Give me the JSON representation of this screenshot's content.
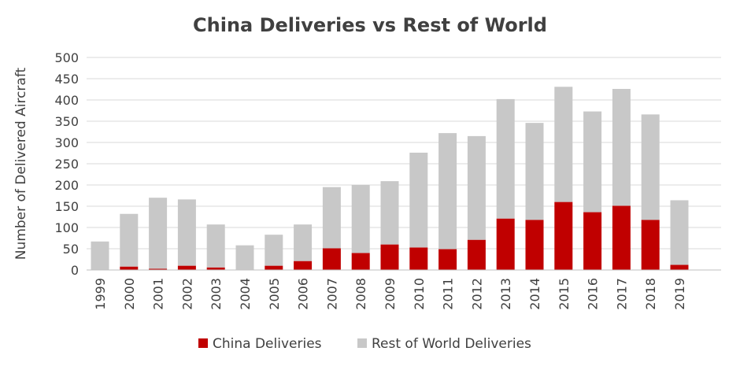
{
  "chart_data": {
    "type": "bar",
    "stacked": true,
    "title": "China Deliveries vs Rest of World",
    "xlabel": "",
    "ylabel": "Number of Delivered Aircraft",
    "categories": [
      "1999",
      "2000",
      "2001",
      "2002",
      "2003",
      "2004",
      "2005",
      "2006",
      "2007",
      "2008",
      "2009",
      "2010",
      "2011",
      "2012",
      "2013",
      "2014",
      "2015",
      "2016",
      "2017",
      "2018",
      "2019"
    ],
    "series": [
      {
        "name": "China Deliveries",
        "color": "#c00000",
        "values": [
          0,
          8,
          3,
          10,
          6,
          1,
          10,
          21,
          51,
          40,
          60,
          53,
          49,
          71,
          121,
          118,
          160,
          136,
          151,
          118,
          12
        ]
      },
      {
        "name": "Rest of World Deliveries",
        "color": "#c8c8c8",
        "values": [
          67,
          124,
          167,
          156,
          101,
          57,
          73,
          86,
          144,
          160,
          149,
          223,
          273,
          244,
          281,
          228,
          271,
          237,
          275,
          248,
          152
        ]
      }
    ],
    "ylim": [
      0,
      500
    ],
    "yticks": [
      0,
      50,
      100,
      150,
      200,
      250,
      300,
      350,
      400,
      450,
      500
    ],
    "grid": true,
    "legend_position": "bottom"
  }
}
